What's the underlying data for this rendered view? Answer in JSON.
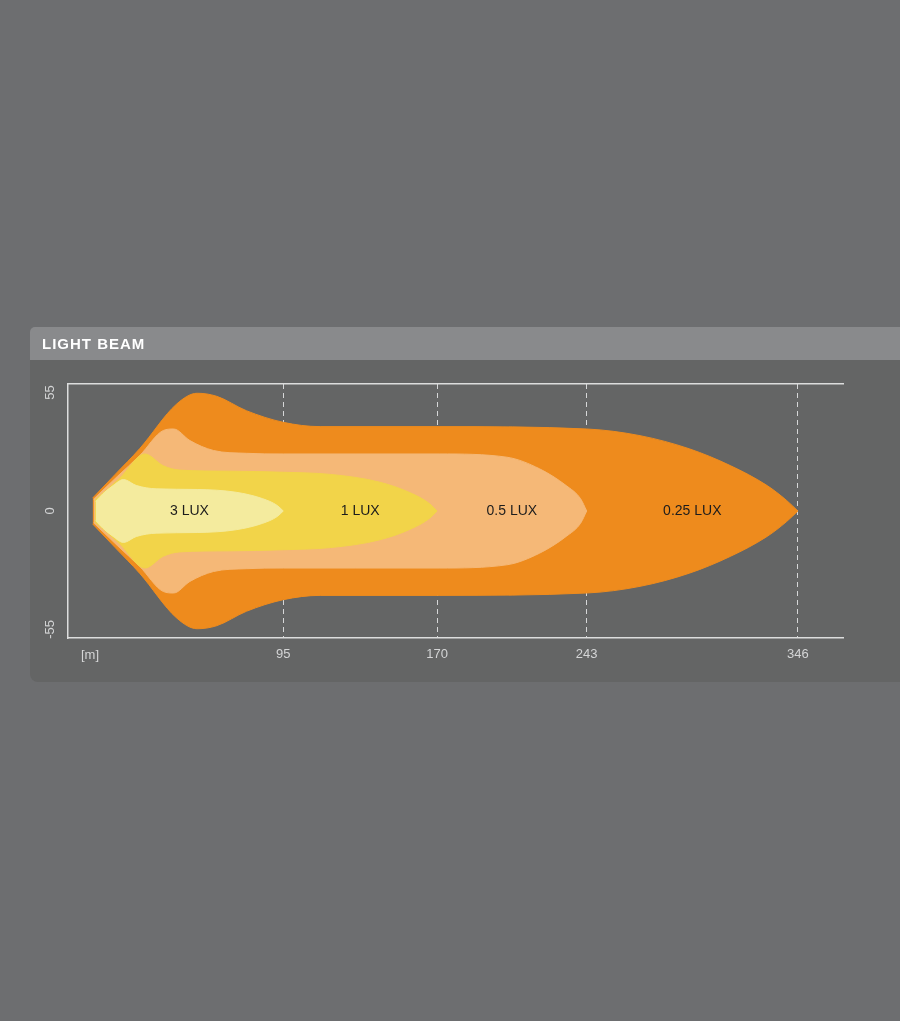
{
  "chart_data": {
    "type": "area",
    "title": "LIGHT BEAM",
    "xlabel": "[m]",
    "xlim": [
      -10,
      368
    ],
    "xticks": [
      95,
      170,
      243,
      346
    ],
    "ylim": [
      -59,
      59
    ],
    "yticks": [
      -55,
      0,
      55
    ],
    "grid": "x",
    "series": [
      {
        "name": "3 LUX",
        "color": "#f4eb9e",
        "x": [
          3.5,
          7,
          12,
          17,
          23.5,
          33,
          53,
          72,
          85,
          92,
          95
        ],
        "values": [
          4.5,
          8,
          11.8,
          14.6,
          11.8,
          10.3,
          10,
          8.7,
          5.7,
          2.6,
          0
        ]
      },
      {
        "color": "#f4eb9e",
        "x": [
          3.5,
          7,
          12,
          17,
          23.5,
          33,
          53,
          72,
          85,
          92,
          95
        ],
        "values": [
          -4.5,
          -8,
          -11.8,
          -14.6,
          -11.8,
          -10.3,
          -10,
          -8.7,
          -5.7,
          -2.6,
          0
        ]
      },
      {
        "name": "1 LUX",
        "color": "#f2d449",
        "x": [
          3,
          15,
          27.5,
          36.5,
          44.5,
          69,
          95,
          118,
          142,
          158,
          166.5,
          170
        ],
        "values": [
          5,
          15,
          26.5,
          21,
          19,
          18.5,
          18,
          17,
          13.4,
          8,
          3.3,
          0
        ]
      },
      {
        "color": "#f2d449",
        "x": [
          3,
          15,
          27.5,
          36.5,
          44.5,
          69,
          95,
          118,
          142,
          158,
          166.5,
          170
        ],
        "values": [
          -5,
          -15,
          -26.5,
          -21,
          -19,
          -18.5,
          -18,
          -17,
          -13.4,
          -8,
          -3.3,
          0
        ]
      },
      {
        "name": "0.5 LUX",
        "color": "#f5b877",
        "x": [
          2.5,
          14,
          25,
          36.5,
          41.5,
          49.5,
          61,
          77,
          95,
          130,
          171,
          204,
          220,
          233,
          240,
          243
        ],
        "values": [
          5.5,
          16,
          25.8,
          37.4,
          38.1,
          32.7,
          28.1,
          26.8,
          26.5,
          26.5,
          26.5,
          25,
          19.6,
          11.8,
          5.7,
          0
        ]
      },
      {
        "color": "#f5b877",
        "x": [
          2.5,
          14,
          25,
          36.5,
          41.5,
          49.5,
          61,
          77,
          95,
          130,
          171,
          204,
          220,
          233,
          240,
          243
        ],
        "values": [
          -5.5,
          -16,
          -25.8,
          -37.4,
          -38.1,
          -32.7,
          -28.1,
          -26.8,
          -26.5,
          -26.5,
          -26.5,
          -25,
          -19.6,
          -11.8,
          -5.7,
          0
        ]
      },
      {
        "name": "0.25 LUX",
        "color": "#ee8b1d",
        "x": [
          2,
          13,
          25,
          43,
          53,
          62.5,
          77,
          95,
          113,
          171,
          243,
          269,
          293,
          313,
          331,
          340.5,
          346
        ],
        "values": [
          6,
          17,
          29,
          49.7,
          54.7,
          53.3,
          46.6,
          41.2,
          39.2,
          39.2,
          38.1,
          35,
          28.9,
          21.1,
          11.8,
          4.9,
          0
        ]
      },
      {
        "color": "#ee8b1d",
        "x": [
          2,
          13,
          25,
          43,
          53,
          62.5,
          77,
          95,
          113,
          171,
          243,
          269,
          293,
          313,
          331,
          340.5,
          346
        ],
        "values": [
          -6,
          -17,
          -29,
          -49.7,
          -54.7,
          -53.3,
          -46.6,
          -41.2,
          -39.2,
          -39.2,
          -38.1,
          -35,
          -28.9,
          -21.1,
          -11.8,
          -4.9,
          0
        ]
      }
    ]
  }
}
